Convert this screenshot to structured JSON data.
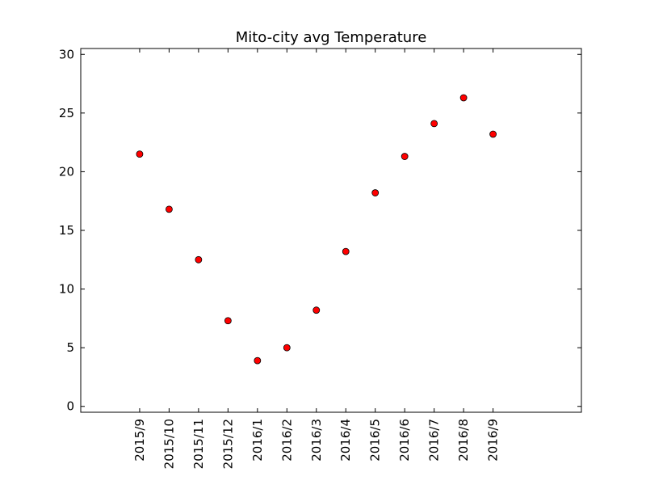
{
  "chart_data": {
    "type": "scatter",
    "title": "Mito-city avg Temperature",
    "xlabel": "",
    "ylabel": "",
    "categories": [
      "2015/9",
      "2015/10",
      "2015/11",
      "2015/12",
      "2016/1",
      "2016/2",
      "2016/3",
      "2016/4",
      "2016/5",
      "2016/6",
      "2016/7",
      "2016/8",
      "2016/9"
    ],
    "values": [
      21.5,
      16.8,
      12.5,
      7.3,
      3.9,
      5.0,
      8.2,
      13.2,
      18.2,
      21.3,
      24.1,
      26.3,
      23.2
    ],
    "ylim": [
      -0.5,
      30.5
    ],
    "yticks": [
      "0",
      "5",
      "10",
      "15",
      "20",
      "25",
      "30"
    ],
    "grid": false,
    "legend": "none",
    "marker_color": "#ff0000",
    "marker_edge_color": "#000000"
  }
}
